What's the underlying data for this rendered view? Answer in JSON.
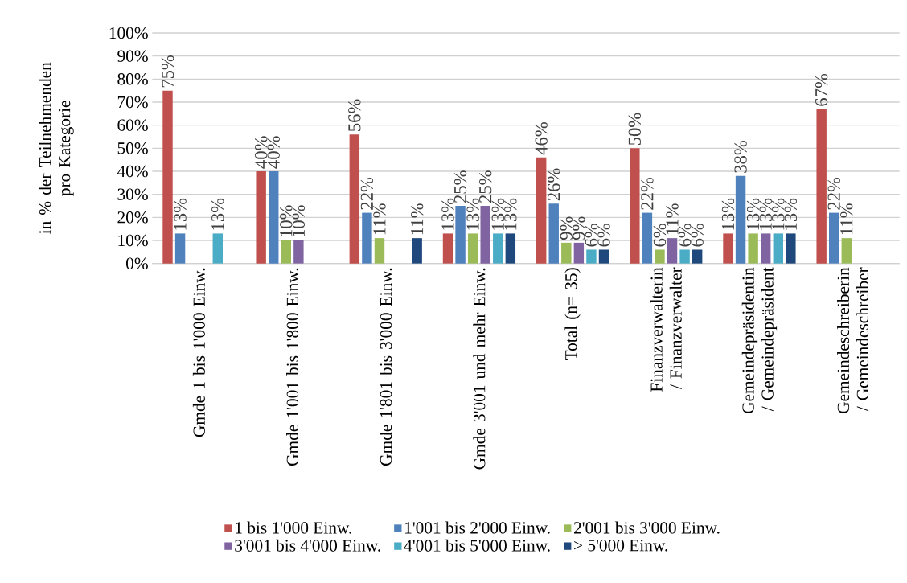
{
  "chart_data": {
    "type": "bar",
    "ylabel": "in %  der Teilnehmenden pro Kategorie",
    "categories": [
      "Gmde 1 bis 1'000 Einw.",
      "Gmde 1'001 bis 1'800 Einw.",
      "Gmde 1'801 bis 3'000 Einw.",
      "Gmde 3'001 und mehr Einw.",
      "Total (n= 35)",
      "Finanzverwalterin / Finanzverwalter",
      "Gemeindepräsidentin / Gemeindepräsident",
      "Gemeindeschreiberin / Gemeindeschreiber"
    ],
    "series": [
      {
        "name": "1 bis 1'000 Einw.",
        "color": "#c0504d",
        "values": [
          75,
          40,
          56,
          13,
          46,
          50,
          13,
          67
        ],
        "value_labels": [
          "75%",
          "40%",
          "56%",
          "13%",
          "46%",
          "50%",
          "13%",
          "67%"
        ]
      },
      {
        "name": "1'001 bis 2'000 Einw.",
        "color": "#4f81bd",
        "values": [
          13,
          40,
          22,
          25,
          26,
          22,
          38,
          22
        ],
        "value_labels": [
          "13%",
          "40%",
          "22%",
          "25%",
          "26%",
          "22%",
          "38%",
          "22%"
        ]
      },
      {
        "name": "2'001 bis 3'000 Einw.",
        "color": "#9bbb59",
        "values": [
          0,
          10,
          11,
          13,
          9,
          6,
          13,
          11
        ],
        "value_labels": [
          null,
          "10%",
          "11%",
          "13%",
          "9%",
          "6%",
          "13%",
          "11%"
        ]
      },
      {
        "name": "3'001 bis 4'000 Einw.",
        "color": "#8064a2",
        "values": [
          0,
          10,
          0,
          25,
          9,
          11,
          13,
          0
        ],
        "value_labels": [
          null,
          "10%",
          null,
          "25%",
          "9%",
          "11%",
          "13%",
          null
        ]
      },
      {
        "name": "4'001 bis 5'000 Einw.",
        "color": "#4bacc6",
        "values": [
          13,
          0,
          0,
          13,
          6,
          6,
          13,
          0
        ],
        "value_labels": [
          "13%",
          null,
          null,
          "13%",
          "6%",
          "6%",
          "13%",
          null
        ]
      },
      {
        "name": "> 5'000 Einw.",
        "color": "#1f497d",
        "values": [
          0,
          0,
          11,
          13,
          6,
          6,
          13,
          0
        ],
        "value_labels": [
          null,
          null,
          "11%",
          "13%",
          "6%",
          "6%",
          "13%",
          null
        ]
      }
    ],
    "ylim": [
      0,
      100
    ],
    "yticks": [
      {
        "value": 0,
        "label": "0%"
      },
      {
        "value": 10,
        "label": "10%"
      },
      {
        "value": 20,
        "label": "20%"
      },
      {
        "value": 30,
        "label": "30%"
      },
      {
        "value": 40,
        "label": "40%"
      },
      {
        "value": 50,
        "label": "50%"
      },
      {
        "value": 60,
        "label": "60%"
      },
      {
        "value": 70,
        "label": "70%"
      },
      {
        "value": 80,
        "label": "80%"
      },
      {
        "value": 90,
        "label": "90%"
      },
      {
        "value": 100,
        "label": "100%"
      }
    ],
    "grid": "y",
    "legend": "bottom"
  }
}
